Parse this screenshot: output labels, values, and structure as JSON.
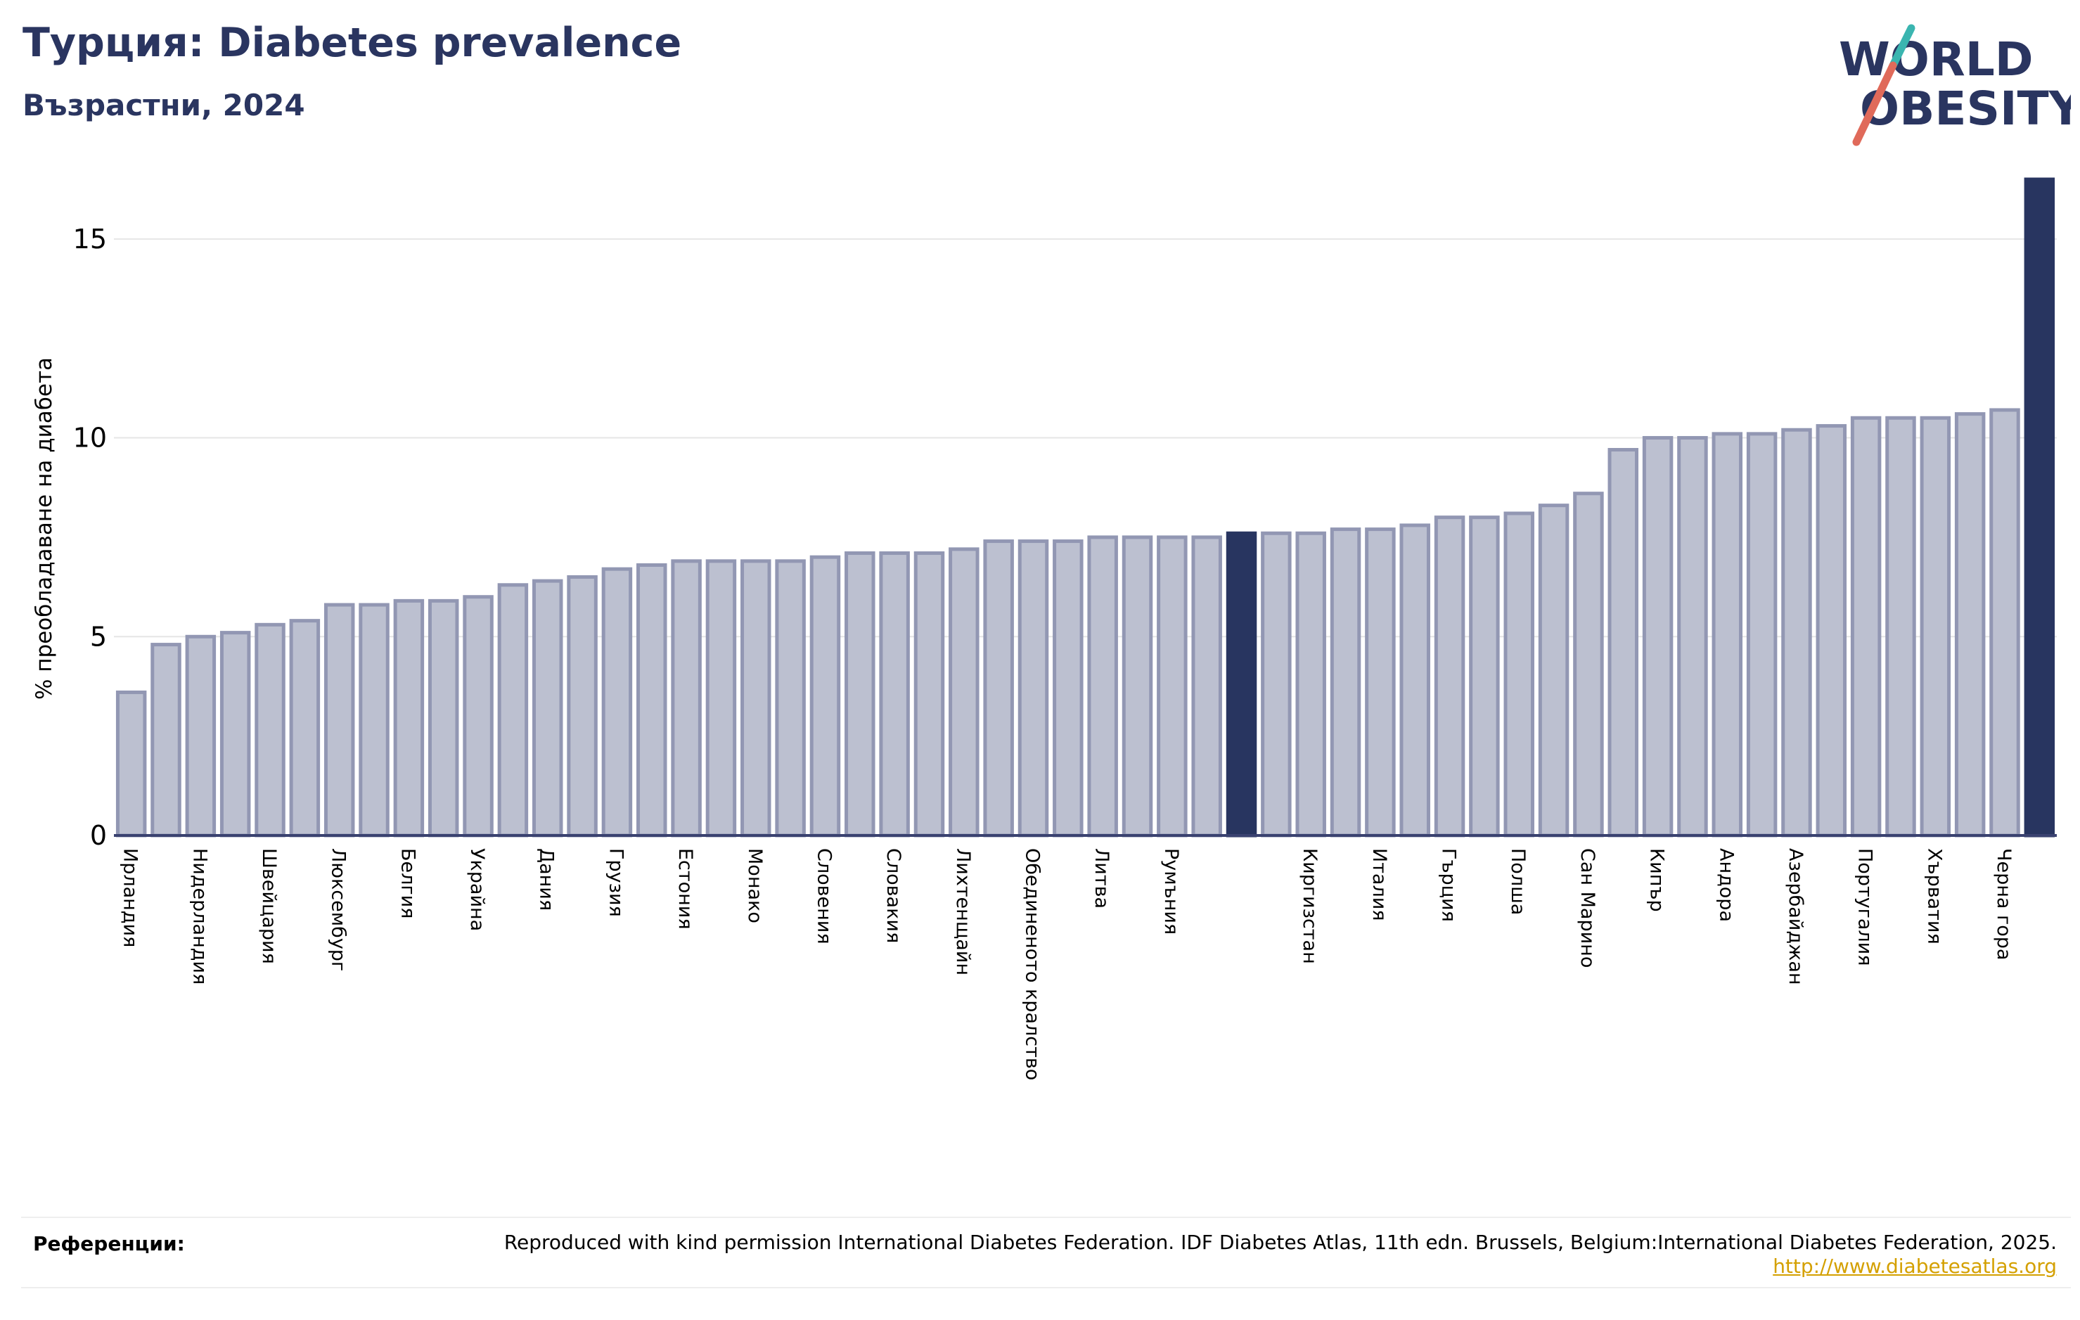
{
  "header": {
    "title": "Турция: Diabetes prevalence",
    "subtitle": "Възрастни, 2024"
  },
  "logo": {
    "line1": "WORLD",
    "line2": "OBESITY"
  },
  "footer": {
    "label": "Референции:",
    "text": "Reproduced with kind permission International Diabetes Federation. IDF Diabetes Atlas, 11th edn. Brussels, Belgium:International Diabetes Federation, 2025.",
    "link": "http://www.diabetesatlas.org"
  },
  "colors": {
    "bar": "#bcc0d0",
    "bar_edge": "#9297b3",
    "highlight": "#283560",
    "title": "#2a3560"
  },
  "chart_data": {
    "type": "bar",
    "ylabel": "% преобладаване на диабета",
    "ylim": [
      0,
      16.5
    ],
    "yticks": [
      0,
      5,
      10,
      15
    ],
    "highlight_index": 32,
    "categories": [
      "Ирландия",
      "",
      "Нидерландия",
      "",
      "Швейцария",
      "",
      "Люксембург",
      "",
      "Белгия",
      "",
      "Украйна",
      "",
      "Дания",
      "",
      "Грузия",
      "",
      "Естония",
      "",
      "Монако",
      "",
      "Словения",
      "",
      "Словакия",
      "",
      "Лихтенщайн",
      "",
      "Обединеното кралство",
      "",
      "Литва",
      "",
      "Румъния",
      "",
      "",
      "",
      "Киргизстан",
      "",
      "Италия",
      "",
      "Гърция",
      "",
      "Полша",
      "",
      "Сан Марино",
      "",
      "Кипър",
      "",
      "Андора",
      "",
      "Азербайджан",
      "",
      "Португалия",
      "",
      "Хърватия",
      "",
      "Черна гора",
      ""
    ],
    "values": [
      3.6,
      4.8,
      5.0,
      5.1,
      5.3,
      5.4,
      5.8,
      5.8,
      5.9,
      5.9,
      6.0,
      6.3,
      6.4,
      6.5,
      6.7,
      6.8,
      6.9,
      6.9,
      6.9,
      6.9,
      7.0,
      7.1,
      7.1,
      7.1,
      7.2,
      7.4,
      7.4,
      7.4,
      7.5,
      7.5,
      7.5,
      7.5,
      7.6,
      7.6,
      7.6,
      7.7,
      7.7,
      7.8,
      8.0,
      8.0,
      8.1,
      8.3,
      8.6,
      9.7,
      10.0,
      10.0,
      10.1,
      10.1,
      10.2,
      10.3,
      10.5,
      10.5,
      10.5,
      10.6,
      10.7,
      16.5
    ]
  }
}
